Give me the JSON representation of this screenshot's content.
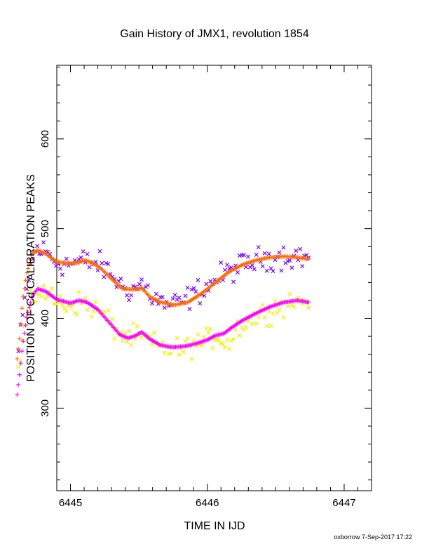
{
  "chart_data": {
    "type": "scatter",
    "title": "Gain History of JMX1, revolution 1854",
    "xlabel": "TIME IN IJD",
    "ylabel": "POSITION OF Cd CALIBRATION PEAKS",
    "xlim": [
      6444.9,
      6447.2
    ],
    "ylim": [
      208,
      682
    ],
    "x_ticks": [
      6445,
      6446,
      6447
    ],
    "x_tick_labels": [
      "6445",
      "6446",
      "6447"
    ],
    "y_ticks": [
      300,
      400,
      500,
      600
    ],
    "y_tick_labels": [
      "300",
      "400",
      "500",
      "600"
    ],
    "grid": false,
    "legend": "none",
    "footer": "oxborrow  7-Sep-2017 17:22",
    "series": [
      {
        "marker": "x",
        "color": "#7b00ff",
        "x_start": 6444.62,
        "x_end": 6446.74,
        "count": 140,
        "scatter": 10,
        "curve": [
          [
            6444.62,
            362
          ],
          [
            6444.66,
            412
          ],
          [
            6444.7,
            450
          ],
          [
            6444.75,
            478
          ],
          [
            6444.82,
            474
          ],
          [
            6444.9,
            462
          ],
          [
            6445.0,
            461
          ],
          [
            6445.08,
            464
          ],
          [
            6445.16,
            462
          ],
          [
            6445.22,
            459
          ],
          [
            6445.3,
            450
          ],
          [
            6445.38,
            434
          ],
          [
            6445.46,
            432
          ],
          [
            6445.52,
            439
          ],
          [
            6445.6,
            424
          ],
          [
            6445.7,
            415
          ],
          [
            6445.8,
            416
          ],
          [
            6445.9,
            427
          ],
          [
            6446.0,
            436
          ],
          [
            6446.1,
            447
          ],
          [
            6446.2,
            456
          ],
          [
            6446.3,
            461
          ],
          [
            6446.4,
            466
          ],
          [
            6446.5,
            469
          ],
          [
            6446.6,
            470
          ],
          [
            6446.74,
            468
          ]
        ]
      },
      {
        "marker": "x",
        "color": "#f0f000",
        "x_start": 6444.62,
        "x_end": 6446.74,
        "count": 140,
        "scatter": 9,
        "curve": [
          [
            6444.62,
            340
          ],
          [
            6444.66,
            385
          ],
          [
            6444.7,
            410
          ],
          [
            6444.76,
            432
          ],
          [
            6444.82,
            428
          ],
          [
            6444.9,
            418
          ],
          [
            6445.0,
            415
          ],
          [
            6445.08,
            418
          ],
          [
            6445.16,
            412
          ],
          [
            6445.24,
            403
          ],
          [
            6445.32,
            390
          ],
          [
            6445.4,
            378
          ],
          [
            6445.48,
            380
          ],
          [
            6445.56,
            376
          ],
          [
            6445.64,
            368
          ],
          [
            6445.72,
            366
          ],
          [
            6445.82,
            365
          ],
          [
            6445.9,
            371
          ],
          [
            6446.0,
            375
          ],
          [
            6446.06,
            382
          ],
          [
            6446.12,
            375
          ],
          [
            6446.16,
            372
          ],
          [
            6446.22,
            390
          ],
          [
            6446.3,
            397
          ],
          [
            6446.4,
            405
          ],
          [
            6446.5,
            412
          ],
          [
            6446.6,
            418
          ],
          [
            6446.74,
            421
          ]
        ]
      },
      {
        "marker": "+",
        "color": "#ff6a00",
        "x_start": 6444.61,
        "x_end": 6446.74,
        "count": 240,
        "scatter": 0,
        "curve": [
          [
            6444.61,
            355
          ],
          [
            6444.63,
            380
          ],
          [
            6444.65,
            420
          ],
          [
            6444.68,
            450
          ],
          [
            6444.72,
            472
          ],
          [
            6444.76,
            476
          ],
          [
            6444.82,
            472
          ],
          [
            6444.9,
            463
          ],
          [
            6445.0,
            461
          ],
          [
            6445.06,
            462
          ],
          [
            6445.1,
            465
          ],
          [
            6445.16,
            462
          ],
          [
            6445.22,
            456
          ],
          [
            6445.3,
            444
          ],
          [
            6445.38,
            433
          ],
          [
            6445.46,
            432
          ],
          [
            6445.52,
            434
          ],
          [
            6445.58,
            424
          ],
          [
            6445.66,
            418
          ],
          [
            6445.76,
            415
          ],
          [
            6445.86,
            418
          ],
          [
            6445.96,
            428
          ],
          [
            6446.06,
            440
          ],
          [
            6446.16,
            452
          ],
          [
            6446.26,
            460
          ],
          [
            6446.36,
            465
          ],
          [
            6446.46,
            468
          ],
          [
            6446.56,
            469
          ],
          [
            6446.66,
            468
          ],
          [
            6446.74,
            466
          ]
        ]
      },
      {
        "marker": "+",
        "color": "#ff00ff",
        "x_start": 6444.61,
        "x_end": 6446.74,
        "count": 240,
        "scatter": 0,
        "curve": [
          [
            6444.61,
            315
          ],
          [
            6444.63,
            340
          ],
          [
            6444.65,
            370
          ],
          [
            6444.68,
            400
          ],
          [
            6444.72,
            425
          ],
          [
            6444.76,
            433
          ],
          [
            6444.82,
            430
          ],
          [
            6444.9,
            421
          ],
          [
            6445.0,
            417
          ],
          [
            6445.06,
            420
          ],
          [
            6445.12,
            418
          ],
          [
            6445.2,
            410
          ],
          [
            6445.28,
            396
          ],
          [
            6445.36,
            382
          ],
          [
            6445.42,
            378
          ],
          [
            6445.48,
            381
          ],
          [
            6445.52,
            385
          ],
          [
            6445.58,
            377
          ],
          [
            6445.66,
            370
          ],
          [
            6445.74,
            368
          ],
          [
            6445.84,
            369
          ],
          [
            6445.92,
            372
          ],
          [
            6446.0,
            376
          ],
          [
            6446.06,
            381
          ],
          [
            6446.12,
            383
          ],
          [
            6446.18,
            390
          ],
          [
            6446.26,
            398
          ],
          [
            6446.36,
            406
          ],
          [
            6446.46,
            413
          ],
          [
            6446.56,
            418
          ],
          [
            6446.66,
            420
          ],
          [
            6446.74,
            418
          ]
        ]
      }
    ]
  }
}
